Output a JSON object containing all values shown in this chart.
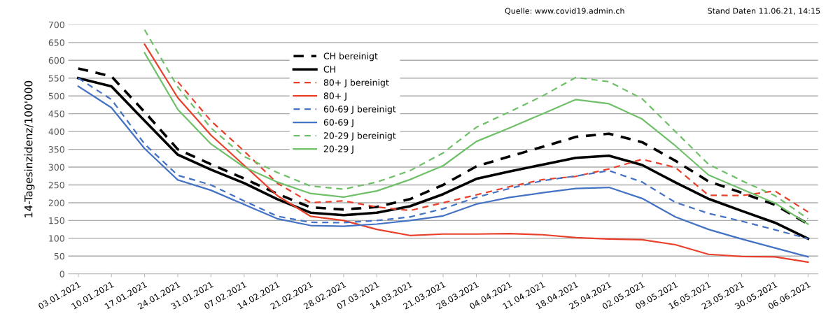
{
  "chart_data": {
    "type": "line",
    "ylabel": "14-Tagesinzidenz/100'000",
    "annotations": [
      "Quelle: www.covid19.admin.ch",
      "Stand Daten 11.06.21, 14:15"
    ],
    "categories": [
      "03.01.2021",
      "10.01.2021",
      "17.01.2021",
      "24.01.2021",
      "31.01.2021",
      "07.02.2021",
      "14.02.2021",
      "21.02.2021",
      "28.02.2021",
      "07.03.2021",
      "14.03.2021",
      "21.03.2021",
      "28.03.2021",
      "04.04.2021",
      "11.04.2021",
      "18.04.2021",
      "25.04.2021",
      "02.05.2021",
      "09.05.2021",
      "16.05.2021",
      "23.05.2021",
      "30.05.2021",
      "06.06.2021"
    ],
    "ylim": [
      0,
      700
    ],
    "yticks": [
      0,
      50,
      100,
      150,
      200,
      250,
      300,
      350,
      400,
      450,
      500,
      550,
      600,
      650,
      700
    ],
    "grid": "y",
    "legend": "top left",
    "marker": "none",
    "series": [
      {
        "name": "CH bereinigt",
        "color": "#000000",
        "line_style": "dashed",
        "values": [
          577,
          555,
          455,
          350,
          308,
          268,
          225,
          187,
          181,
          188,
          210,
          250,
          302,
          330,
          357,
          385,
          394,
          370,
          318,
          260,
          228,
          194,
          140
        ]
      },
      {
        "name": "CH",
        "color": "#000000",
        "line_style": "solid",
        "values": [
          550,
          527,
          430,
          335,
          293,
          255,
          210,
          172,
          165,
          172,
          190,
          224,
          267,
          288,
          307,
          326,
          332,
          306,
          257,
          211,
          177,
          144,
          99
        ]
      },
      {
        "name": "80+ J bereinigt",
        "color": "#e8402a",
        "line_style": "dashed",
        "values": [
          null,
          null,
          null,
          540,
          430,
          345,
          255,
          200,
          205,
          188,
          178,
          200,
          222,
          245,
          265,
          274,
          295,
          322,
          299,
          221,
          220,
          233,
          174
        ]
      },
      {
        "name": "80+ J",
        "color": "#e8402a",
        "line_style": "solid",
        "values": [
          null,
          null,
          645,
          495,
          390,
          305,
          220,
          162,
          150,
          125,
          108,
          112,
          112,
          113,
          110,
          102,
          98,
          96,
          82,
          55,
          49,
          48,
          33
        ]
      },
      {
        "name": "60-69 J bereinigt",
        "color": "#4472c4",
        "line_style": "dashed",
        "values": [
          550,
          490,
          365,
          277,
          250,
          205,
          162,
          145,
          144,
          150,
          160,
          183,
          215,
          240,
          262,
          275,
          290,
          258,
          201,
          170,
          148,
          124,
          99
        ]
      },
      {
        "name": "60-69 J",
        "color": "#4472c4",
        "line_style": "solid",
        "values": [
          527,
          467,
          352,
          264,
          235,
          195,
          155,
          136,
          134,
          140,
          150,
          163,
          196,
          215,
          228,
          240,
          243,
          212,
          160,
          125,
          98,
          73,
          48
        ]
      },
      {
        "name": "20-29 J bereinigt",
        "color": "#70c06a",
        "line_style": "dashed",
        "values": [
          null,
          null,
          686,
          525,
          410,
          330,
          285,
          247,
          238,
          258,
          290,
          340,
          412,
          455,
          500,
          552,
          540,
          492,
          400,
          308,
          262,
          220,
          155
        ]
      },
      {
        "name": "20-29 J",
        "color": "#70c06a",
        "line_style": "solid",
        "values": [
          null,
          null,
          621,
          462,
          365,
          300,
          258,
          226,
          216,
          233,
          265,
          304,
          372,
          410,
          450,
          490,
          478,
          435,
          360,
          278,
          238,
          199,
          140
        ]
      }
    ]
  }
}
